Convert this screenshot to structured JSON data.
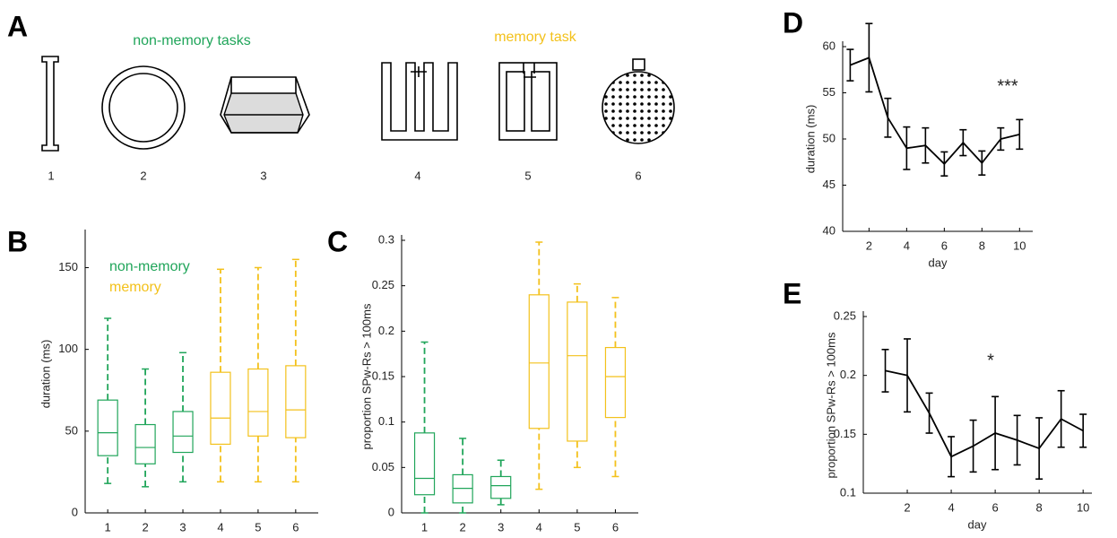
{
  "diagram": {
    "panel": "A",
    "groups": [
      {
        "label": "non-memory tasks"
      },
      {
        "label": "memory task"
      }
    ],
    "items": [
      "1",
      "2",
      "3",
      "4",
      "5",
      "6"
    ]
  },
  "chart_data": [
    {
      "type": "box",
      "panel": "B",
      "ylabel": "duration (ms)",
      "xlim": [
        0.4,
        6.6
      ],
      "ylim": [
        0,
        170
      ],
      "xticks": [
        1,
        2,
        3,
        4,
        5,
        6
      ],
      "yticks": [
        0,
        50,
        100,
        150
      ],
      "legend": "upper left",
      "series": [
        {
          "name": "non-memory",
          "color": "#20a55a",
          "x": [
            1,
            2,
            3
          ],
          "whisker_low": [
            18,
            16,
            19
          ],
          "q1": [
            35,
            30,
            37
          ],
          "median": [
            49,
            40,
            47
          ],
          "q3": [
            69,
            54,
            62
          ],
          "whisker_high": [
            119,
            88,
            98
          ]
        },
        {
          "name": "memory",
          "color": "#f3c11b",
          "x": [
            4,
            5,
            6
          ],
          "whisker_low": [
            19,
            19,
            19
          ],
          "q1": [
            42,
            47,
            46
          ],
          "median": [
            58,
            62,
            63
          ],
          "q3": [
            86,
            88,
            90
          ],
          "whisker_high": [
            149,
            150,
            155
          ]
        }
      ]
    },
    {
      "type": "box",
      "panel": "C",
      "ylabel": "proportion SPw-Rs > 100ms",
      "xlim": [
        0.4,
        6.6
      ],
      "ylim": [
        0,
        0.3
      ],
      "xticks": [
        1,
        2,
        3,
        4,
        5,
        6
      ],
      "yticks": [
        0,
        0.05,
        0.1,
        0.15,
        0.2,
        0.25,
        0.3
      ],
      "series": [
        {
          "color": "#20a55a",
          "x": [
            1,
            2,
            3
          ],
          "whisker_low": [
            0,
            0,
            0.009
          ],
          "q1": [
            0.02,
            0.011,
            0.016
          ],
          "median": [
            0.038,
            0.027,
            0.03
          ],
          "q3": [
            0.088,
            0.042,
            0.04
          ],
          "whisker_high": [
            0.188,
            0.082,
            0.058
          ]
        },
        {
          "color": "#f3c11b",
          "x": [
            4,
            5,
            6
          ],
          "whisker_low": [
            0.026,
            0.05,
            0.04
          ],
          "q1": [
            0.093,
            0.079,
            0.105
          ],
          "median": [
            0.165,
            0.173,
            0.15
          ],
          "q3": [
            0.24,
            0.232,
            0.182
          ],
          "whisker_high": [
            0.298,
            0.252,
            0.237
          ]
        }
      ]
    },
    {
      "type": "line",
      "panel": "D",
      "ylabel": "duration (ms)",
      "xlabel": "day",
      "annotation": "***",
      "color": "#000000",
      "xlim": [
        0.6,
        10.7
      ],
      "ylim": [
        40,
        60
      ],
      "xticks": [
        2,
        4,
        6,
        8,
        10
      ],
      "yticks": [
        40,
        45,
        50,
        55,
        60
      ],
      "x": [
        1,
        2,
        3,
        4,
        5,
        6,
        7,
        8,
        9,
        10
      ],
      "values": [
        58,
        58.8,
        52.3,
        49,
        49.3,
        47.3,
        49.6,
        47.4,
        50,
        50.5
      ],
      "errors": [
        1.7,
        3.7,
        2.1,
        2.3,
        1.9,
        1.3,
        1.4,
        1.3,
        1.2,
        1.6
      ]
    },
    {
      "type": "line",
      "panel": "E",
      "ylabel": "proportion SPw-Rs > 100ms",
      "xlabel": "day",
      "annotation": "*",
      "color": "#000000",
      "xlim": [
        0,
        10.4
      ],
      "ylim": [
        0.1,
        0.25
      ],
      "xticks": [
        2,
        4,
        6,
        8,
        10
      ],
      "yticks": [
        0.1,
        0.15,
        0.2,
        0.25
      ],
      "x": [
        1,
        2,
        3,
        4,
        5,
        6,
        7,
        8,
        9,
        10
      ],
      "values": [
        0.204,
        0.2,
        0.168,
        0.131,
        0.14,
        0.151,
        0.145,
        0.138,
        0.163,
        0.153
      ],
      "errors": [
        0.018,
        0.031,
        0.017,
        0.017,
        0.022,
        0.031,
        0.021,
        0.026,
        0.024,
        0.014
      ]
    }
  ]
}
